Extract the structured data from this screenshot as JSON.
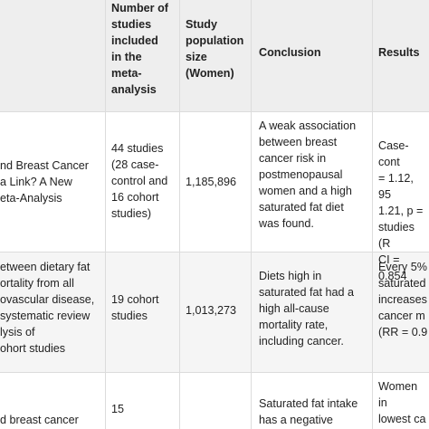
{
  "table": {
    "headers": {
      "num_studies": "Number of\nstudies\nincluded\nin the\nmeta-\nanalysis",
      "population": "Study\npopulation\nsize\n(Women)",
      "conclusion": "Conclusion",
      "results": "Results"
    },
    "rows": [
      {
        "title": "nd Breast Cancer\na Link? A New\neta-Analysis",
        "num_studies": "44 studies\n(28 case-\ncontrol and\n16 cohort\nstudies)",
        "population": "1,185,896",
        "conclusion": "A weak association\nbetween breast\ncancer risk in\npostmenopausal\nwomen and a high\nsaturated fat diet\nwas found.",
        "results": "Case-cont\n= 1.12, 95\n1.21, p =\nstudies (R\nCI = 0.854"
      },
      {
        "title": "etween dietary fat\nortality from all\novascular disease,\n systematic review\nlysis of\nohort studies",
        "num_studies": "19 cohort\nstudies",
        "population": "1,013,273",
        "conclusion": "Diets high in\nsaturated fat had a\nhigh all-cause\nmortality rate,\nincluding cancer.",
        "results": "Every 5%\nsaturated\nincreases\ncancer m\n(RR = 0.9"
      },
      {
        "title": "d breast cancer",
        "num_studies": "15",
        "population": "",
        "conclusion": "Saturated fat intake\nhas a negative",
        "results": "Women in\nlowest ca\nof breast"
      }
    ]
  }
}
